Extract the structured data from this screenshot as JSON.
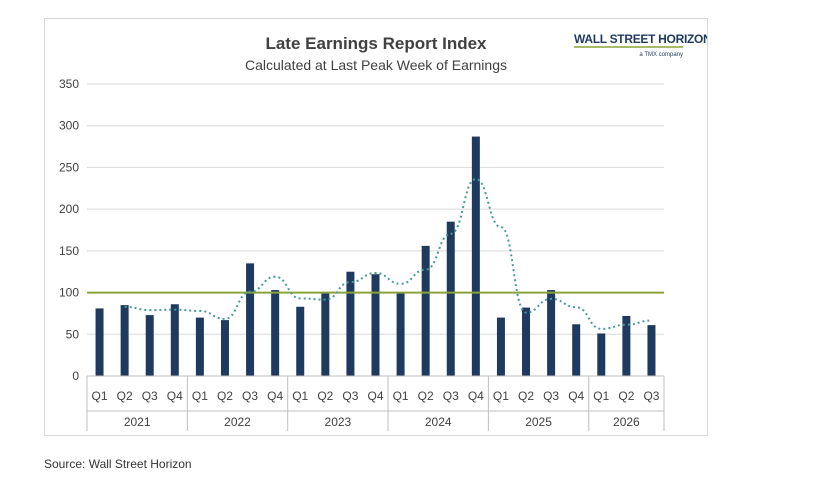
{
  "chart_data": {
    "type": "bar",
    "title": "Late Earnings Report Index",
    "subtitle": "Calculated at Last Peak Week of Earnings",
    "ylim": [
      0,
      350
    ],
    "yticks": [
      0,
      50,
      100,
      150,
      200,
      250,
      300,
      350
    ],
    "categories": [
      "Q1",
      "Q2",
      "Q3",
      "Q4",
      "Q1",
      "Q2",
      "Q3",
      "Q4",
      "Q1",
      "Q2",
      "Q3",
      "Q4",
      "Q1",
      "Q2",
      "Q3",
      "Q4",
      "Q1",
      "Q2",
      "Q3",
      "Q4",
      "Q1",
      "Q2",
      "Q3"
    ],
    "years": [
      {
        "label": "2021",
        "count": 4
      },
      {
        "label": "2022",
        "count": 4
      },
      {
        "label": "2023",
        "count": 4
      },
      {
        "label": "2024",
        "count": 4
      },
      {
        "label": "2025",
        "count": 4
      },
      {
        "label": "2026",
        "count": 3
      }
    ],
    "values": [
      81,
      85,
      73,
      86,
      70,
      67,
      135,
      103,
      83,
      100,
      125,
      122,
      99,
      156,
      185,
      287,
      70,
      82,
      103,
      62,
      51,
      72,
      61
    ],
    "baseline": 100,
    "colors": {
      "bar": "#1f3a5f",
      "baseline": "#8aa339",
      "trend": "#4a9a9a",
      "grid": "#d9d9d9"
    }
  },
  "logo": {
    "main": "WALL STREET HORIZON",
    "sub": "a TMX company"
  },
  "source": "Source: Wall Street Horizon"
}
